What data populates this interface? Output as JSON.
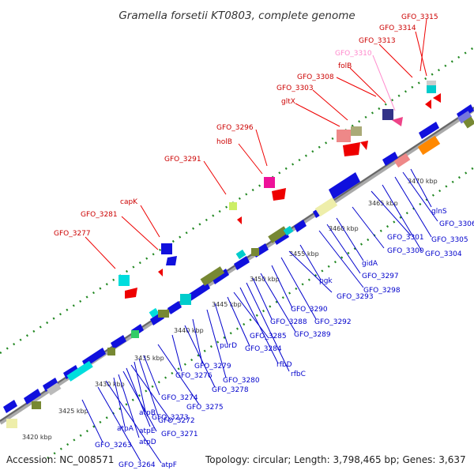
{
  "title": "Gramella forsetii KT0803, complete genome",
  "footer": {
    "accession": "Accession: NC_008571",
    "topology": "Topology: circular; Length: 3,798,465 bp; Genes: 3,637"
  },
  "colors": {
    "forward": "#0000ee",
    "reverse": "#ee0000",
    "highlight": "#ff88cc",
    "backbone": "#888888",
    "dots": "#228822"
  },
  "scale_labels": [
    "3420 kbp",
    "3425 kbp",
    "3430 kbp",
    "3435 kbp",
    "3440 kbp",
    "3445 kbp",
    "3450 kbp",
    "3455 kbp",
    "3460 kbp",
    "3465 kbp",
    "3470 kbp"
  ],
  "top_labels": [
    {
      "text": "GFO_3277",
      "color": "#cc0000"
    },
    {
      "text": "GFO_3281",
      "color": "#cc0000"
    },
    {
      "text": "capK",
      "color": "#cc0000"
    },
    {
      "text": "GFO_3291",
      "color": "#cc0000"
    },
    {
      "text": "holB",
      "color": "#cc0000"
    },
    {
      "text": "GFO_3296",
      "color": "#cc0000"
    },
    {
      "text": "gltX",
      "color": "#cc0000"
    },
    {
      "text": "GFO_3303",
      "color": "#cc0000"
    },
    {
      "text": "GFO_3308",
      "color": "#cc0000"
    },
    {
      "text": "folB",
      "color": "#cc0000"
    },
    {
      "text": "GFO_3310",
      "color": "#ff88cc"
    },
    {
      "text": "GFO_3313",
      "color": "#cc0000"
    },
    {
      "text": "GFO_3314",
      "color": "#cc0000"
    },
    {
      "text": "GFO_3315",
      "color": "#cc0000"
    }
  ],
  "bottom_labels": [
    "GFO_3263",
    "GFO_3264",
    "atpF",
    "atpA",
    "atpD",
    "GFO_3271",
    "atpE",
    "GFO_3272",
    "atpB",
    "GFO_3273",
    "GFO_3274",
    "GFO_3275",
    "GFO_3276",
    "GFO_3278",
    "GFO_3279",
    "GFO_3280",
    "purD",
    "GFO_3284",
    "GFO_3285",
    "rfbD",
    "rfbC",
    "GFO_3288",
    "GFO_3289",
    "GFO_3290",
    "GFO_3292",
    "GFO_3293",
    "pgk",
    "GFO_3298",
    "GFO_3297",
    "gidA",
    "GFO_3300",
    "GFO_3301",
    "GFO_3304",
    "GFO_3305",
    "GFO_3306",
    "glnS"
  ]
}
